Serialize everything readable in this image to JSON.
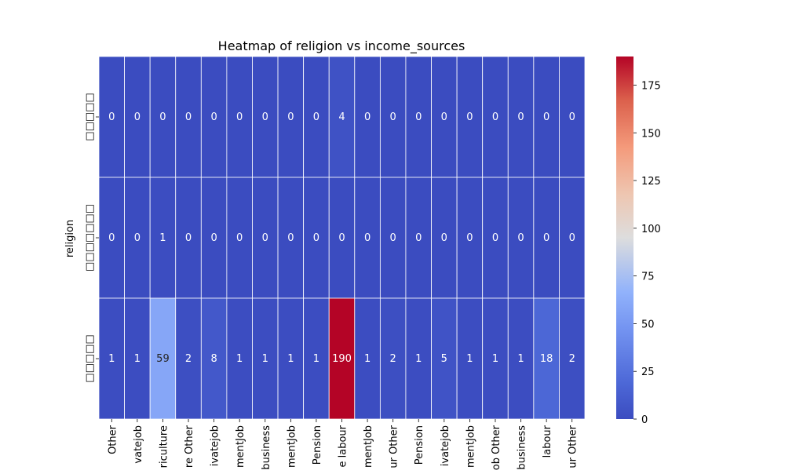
{
  "chart_data": {
    "type": "heatmap",
    "title": "Heatmap of religion vs income_sources",
    "xlabel": "",
    "ylabel": "religion",
    "x_tick_labels": [
      "Other",
      "vatejob",
      "riculture",
      "re Other",
      "ivatejob",
      "mentJob",
      "business",
      "mentJob",
      "Pension",
      "e labour",
      "mentJob",
      "ur Other",
      "Pension",
      "ivatejob",
      "mentJob",
      "ob Other",
      "business",
      "labour",
      "ur Other"
    ],
    "y_tick_labels": [
      "□□□□□",
      "□□□□□□□",
      "□□□□□"
    ],
    "values": [
      [
        0,
        0,
        0,
        0,
        0,
        0,
        0,
        0,
        0,
        4,
        0,
        0,
        0,
        0,
        0,
        0,
        0,
        0,
        0
      ],
      [
        0,
        0,
        1,
        0,
        0,
        0,
        0,
        0,
        0,
        0,
        0,
        0,
        0,
        0,
        0,
        0,
        0,
        0,
        0
      ],
      [
        1,
        1,
        59,
        2,
        8,
        1,
        1,
        1,
        1,
        190,
        1,
        2,
        1,
        5,
        1,
        1,
        1,
        18,
        2
      ]
    ],
    "colormap": "coolwarm",
    "colorbar": {
      "min": 0,
      "max": 190,
      "ticks": [
        0,
        25,
        50,
        75,
        100,
        125,
        150,
        175
      ]
    },
    "annotations": true,
    "grid": false,
    "cell_border_color": "#ffffff"
  }
}
